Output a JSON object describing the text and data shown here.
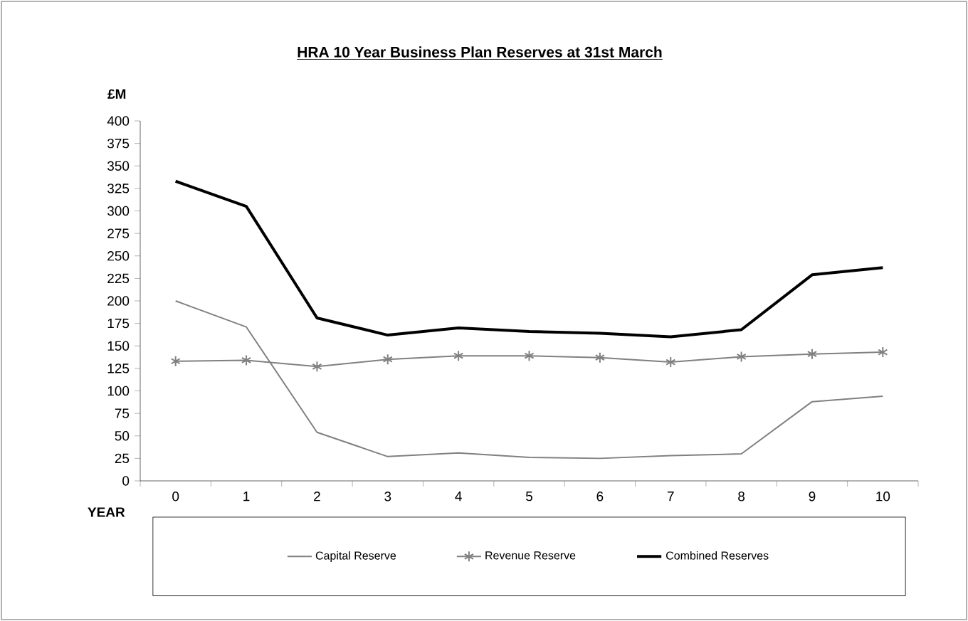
{
  "chart_data": {
    "type": "line",
    "title": "HRA 10 Year Business Plan Reserves at 31st March",
    "xlabel": "YEAR",
    "ylabel": "£M",
    "categories": [
      "0",
      "1",
      "2",
      "3",
      "4",
      "5",
      "6",
      "7",
      "8",
      "9",
      "10"
    ],
    "series": [
      {
        "name": "Capital Reserve",
        "color": "#808080",
        "marker": "none",
        "values": [
          200,
          171,
          54,
          27,
          31,
          26,
          25,
          28,
          30,
          88,
          94
        ]
      },
      {
        "name": "Revenue Reserve",
        "color": "#808080",
        "marker": "cross",
        "values": [
          133,
          134,
          127,
          135,
          139,
          139,
          137,
          132,
          138,
          141,
          143
        ]
      },
      {
        "name": "Combined Reserves",
        "color": "#000000",
        "marker": "none",
        "values": [
          333,
          305,
          181,
          162,
          170,
          166,
          164,
          160,
          168,
          229,
          237
        ]
      }
    ],
    "ylim": [
      0,
      400
    ],
    "yticks": [
      0,
      25,
      50,
      75,
      100,
      125,
      150,
      175,
      200,
      225,
      250,
      275,
      300,
      325,
      350,
      375,
      400
    ],
    "grid": false,
    "legend": "bottom"
  }
}
